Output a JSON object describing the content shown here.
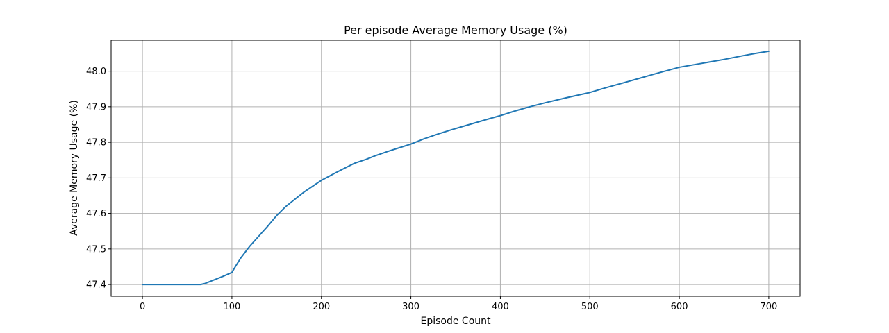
{
  "chart_data": {
    "type": "line",
    "title": "Per episode Average Memory Usage (%)",
    "xlabel": "Episode Count",
    "ylabel": "Average Memory Usage (%)",
    "xlim": [
      -35,
      735
    ],
    "ylim": [
      47.367,
      48.087
    ],
    "xticks": [
      0,
      100,
      200,
      300,
      400,
      500,
      600,
      700
    ],
    "xtick_labels": [
      "0",
      "100",
      "200",
      "300",
      "400",
      "500",
      "600",
      "700"
    ],
    "yticks": [
      47.4,
      47.5,
      47.6,
      47.7,
      47.8,
      47.9,
      48.0
    ],
    "ytick_labels": [
      "47.4",
      "47.5",
      "47.6",
      "47.7",
      "47.8",
      "47.9",
      "48.0"
    ],
    "grid": true,
    "colors": {
      "line": "#1f77b4"
    },
    "series": [
      {
        "x": [
          0,
          20,
          40,
          60,
          65,
          70,
          80,
          90,
          100,
          105,
          110,
          120,
          130,
          140,
          150,
          160,
          170,
          180,
          190,
          200,
          215,
          225,
          237,
          250,
          260,
          275,
          290,
          300,
          315,
          330,
          345,
          360,
          375,
          390,
          400,
          415,
          430,
          450,
          475,
          500,
          520,
          543,
          550,
          575,
          600,
          625,
          650,
          670,
          685,
          700
        ],
        "y": [
          47.4,
          47.4,
          47.4,
          47.4,
          47.4,
          47.403,
          47.413,
          47.423,
          47.434,
          47.455,
          47.475,
          47.508,
          47.536,
          47.564,
          47.594,
          47.619,
          47.639,
          47.659,
          47.676,
          47.693,
          47.713,
          47.726,
          47.741,
          47.752,
          47.762,
          47.775,
          47.787,
          47.795,
          47.81,
          47.823,
          47.835,
          47.846,
          47.857,
          47.868,
          47.875,
          47.887,
          47.898,
          47.911,
          47.926,
          47.94,
          47.955,
          47.971,
          47.976,
          47.994,
          48.011,
          48.022,
          48.033,
          48.043,
          48.05,
          48.056
        ]
      }
    ]
  }
}
